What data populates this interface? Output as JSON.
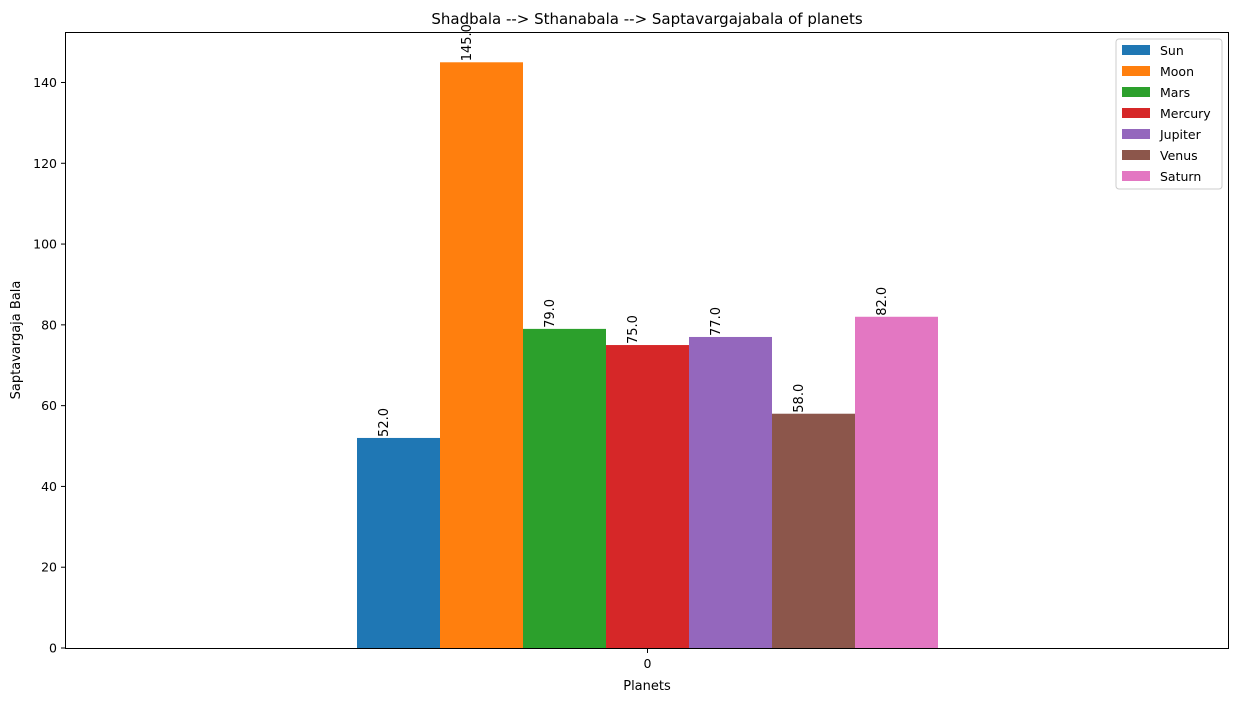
{
  "chart_data": {
    "type": "bar",
    "title": "Shadbala --> Sthanabala --> Saptavargajabala of planets",
    "xlabel": "Planets",
    "ylabel": "Saptavargaja Bala",
    "categories": [
      "0"
    ],
    "ylim": [
      0,
      152.25
    ],
    "yticks": [
      0,
      20,
      40,
      60,
      80,
      100,
      120,
      140
    ],
    "grid": false,
    "legend_position": "top-right",
    "series": [
      {
        "name": "Sun",
        "values": [
          52.0
        ],
        "label": "52.0",
        "color": "#1f77b4"
      },
      {
        "name": "Moon",
        "values": [
          145.0
        ],
        "label": "145.0",
        "color": "#ff7f0e"
      },
      {
        "name": "Mars",
        "values": [
          79.0
        ],
        "label": "79.0",
        "color": "#2ca02c"
      },
      {
        "name": "Mercury",
        "values": [
          75.0
        ],
        "label": "75.0",
        "color": "#d62728"
      },
      {
        "name": "Jupiter",
        "values": [
          77.0
        ],
        "label": "77.0",
        "color": "#9467bd"
      },
      {
        "name": "Venus",
        "values": [
          58.0
        ],
        "label": "58.0",
        "color": "#8c564b"
      },
      {
        "name": "Saturn",
        "values": [
          82.0
        ],
        "label": "82.0",
        "color": "#e377c2"
      }
    ]
  }
}
